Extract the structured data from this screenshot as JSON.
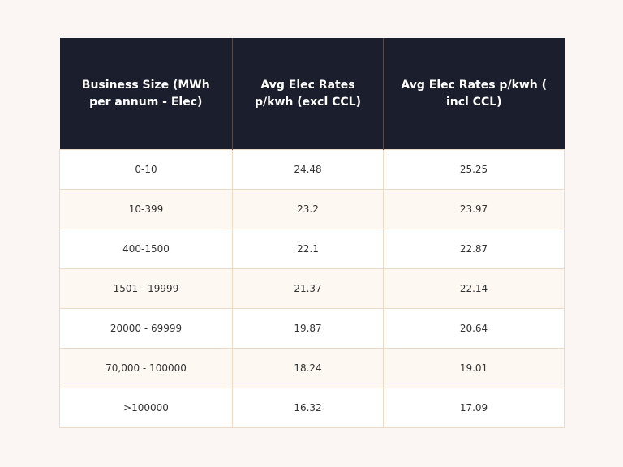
{
  "table": {
    "header": [
      "Business Size (MWh per annum - Elec)",
      "Avg Elec Rates p/kwh (excl CCL)",
      "Avg Elec Rates p/kwh ( incl CCL)"
    ],
    "rows": [
      [
        "0-10",
        "24.48",
        "25.25"
      ],
      [
        "10-399",
        "23.2",
        "23.97"
      ],
      [
        "400-1500",
        "22.1",
        "22.87"
      ],
      [
        "1501 - 19999",
        "21.37",
        "22.14"
      ],
      [
        "20000 - 69999",
        "19.87",
        "20.64"
      ],
      [
        "70,000 - 100000",
        "18.24",
        "19.01"
      ],
      [
        ">100000",
        "16.32",
        "17.09"
      ]
    ]
  }
}
